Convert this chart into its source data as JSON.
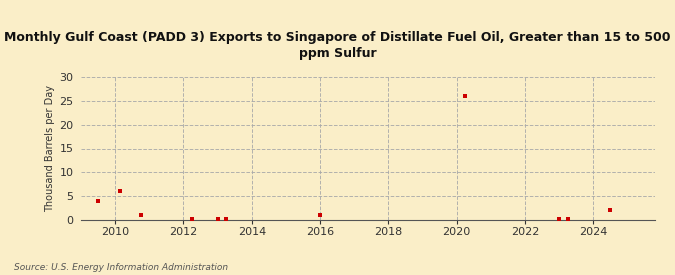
{
  "title": "Monthly Gulf Coast (PADD 3) Exports to Singapore of Distillate Fuel Oil, Greater than 15 to 500\nppm Sulfur",
  "ylabel": "Thousand Barrels per Day",
  "source": "Source: U.S. Energy Information Administration",
  "background_color": "#faeec8",
  "scatter_color": "#cc0000",
  "xlim": [
    2009.0,
    2025.8
  ],
  "ylim": [
    0,
    30
  ],
  "yticks": [
    0,
    5,
    10,
    15,
    20,
    25,
    30
  ],
  "xticks": [
    2010,
    2012,
    2014,
    2016,
    2018,
    2020,
    2022,
    2024
  ],
  "data_x": [
    2009.5,
    2010.15,
    2010.75,
    2012.25,
    2013.0,
    2013.25,
    2016.0,
    2020.25,
    2023.0,
    2023.25,
    2024.5
  ],
  "data_y": [
    4.0,
    6.0,
    1.0,
    0.3,
    0.3,
    0.3,
    1.0,
    26.0,
    0.3,
    0.3,
    2.0
  ],
  "marker_size": 12
}
